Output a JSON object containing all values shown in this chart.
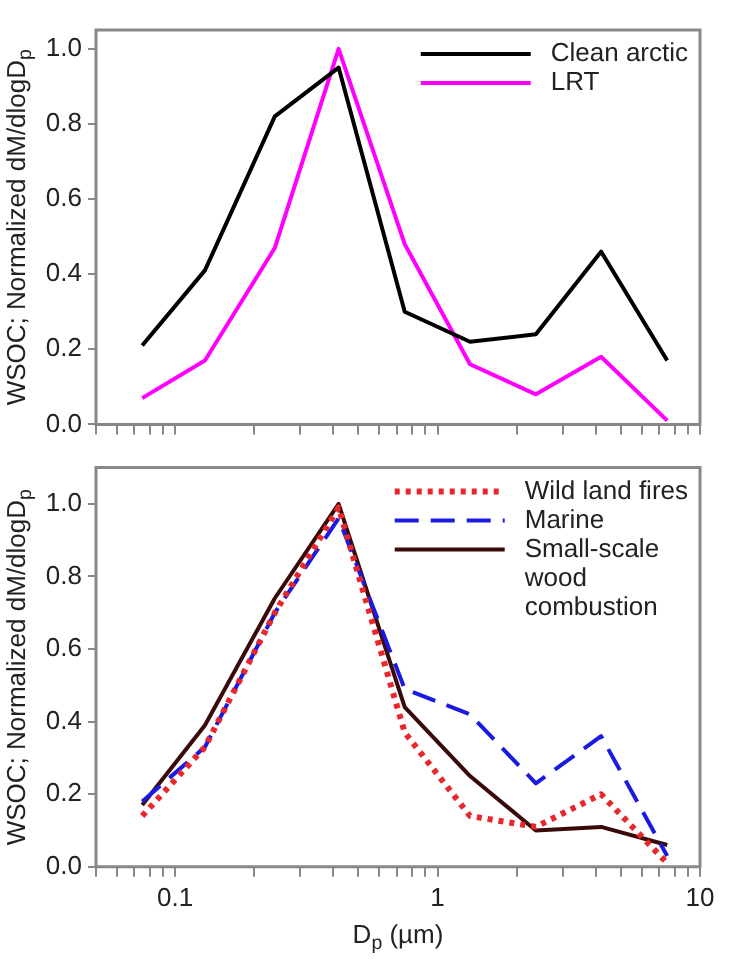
{
  "chart_data": [
    {
      "type": "line",
      "ylabel": "WSOC; Normalized dM/dlogD$_{p}$",
      "x": [
        0.075,
        0.13,
        0.24,
        0.42,
        0.75,
        1.33,
        2.37,
        4.2,
        7.5
      ],
      "series": [
        {
          "name": "Clean arctic",
          "color": "#000000",
          "line_style": "solid",
          "values": [
            0.21,
            0.41,
            0.82,
            0.95,
            0.3,
            0.22,
            0.24,
            0.46,
            0.17
          ]
        },
        {
          "name": "LRT",
          "color": "#ff00ff",
          "line_style": "solid",
          "values": [
            0.07,
            0.17,
            0.47,
            1.0,
            0.48,
            0.16,
            0.08,
            0.18,
            0.01
          ]
        }
      ],
      "log": "x",
      "xlim": [
        0.05,
        10
      ],
      "ylim": [
        0,
        1.05
      ],
      "xticks": [
        {
          "value": 0.05,
          "label": null
        },
        {
          "value": 0.06,
          "label": null
        },
        {
          "value": 0.07,
          "label": null
        },
        {
          "value": 0.08,
          "label": null
        },
        {
          "value": 0.09,
          "label": null
        },
        {
          "value": 0.1,
          "label": null
        },
        {
          "value": 0.2,
          "label": null
        },
        {
          "value": 0.3,
          "label": null
        },
        {
          "value": 0.4,
          "label": null
        },
        {
          "value": 0.5,
          "label": null
        },
        {
          "value": 0.6,
          "label": null
        },
        {
          "value": 0.7,
          "label": null
        },
        {
          "value": 0.8,
          "label": null
        },
        {
          "value": 0.9,
          "label": null
        },
        {
          "value": 1,
          "label": null
        },
        {
          "value": 2,
          "label": null
        },
        {
          "value": 3,
          "label": null
        },
        {
          "value": 4,
          "label": null
        },
        {
          "value": 5,
          "label": null
        },
        {
          "value": 6,
          "label": null
        },
        {
          "value": 7,
          "label": null
        },
        {
          "value": 8,
          "label": null
        },
        {
          "value": 9,
          "label": null
        },
        {
          "value": 10,
          "label": null
        }
      ],
      "yticks": [
        {
          "value": 0,
          "label": "0.0"
        },
        {
          "value": 0.2,
          "label": "0.2"
        },
        {
          "value": 0.4,
          "label": "0.4"
        },
        {
          "value": 0.6,
          "label": "0.6"
        },
        {
          "value": 0.8,
          "label": "0.8"
        },
        {
          "value": 1,
          "label": "1.0"
        }
      ],
      "tick_labels": "y",
      "grid": false,
      "legend": "top right",
      "marker": "none"
    },
    {
      "type": "line",
      "xlabel": "D$_{p}$ (µm)",
      "ylabel": "WSOC; Normalized dM/dlogD$_{p}$",
      "x": [
        0.075,
        0.13,
        0.24,
        0.42,
        0.75,
        1.33,
        2.37,
        4.2,
        7.5
      ],
      "series": [
        {
          "name": "Wild land fires",
          "color": "#e8262b",
          "line_style": "dotted",
          "values": [
            0.14,
            0.33,
            0.7,
            0.99,
            0.37,
            0.14,
            0.11,
            0.2,
            0.01
          ]
        },
        {
          "name": "Marine",
          "color": "#1a1ae0",
          "line_style": "dashed",
          "values": [
            0.18,
            0.33,
            0.7,
            0.96,
            0.49,
            0.42,
            0.23,
            0.36,
            0.03
          ]
        },
        {
          "name": "Small-scale wood combustion",
          "color": "#3a0a0a",
          "line_style": "solid",
          "values": [
            0.17,
            0.39,
            0.74,
            1.0,
            0.44,
            0.25,
            0.1,
            0.11,
            0.06
          ]
        }
      ],
      "log": "x",
      "xlim": [
        0.05,
        10
      ],
      "ylim": [
        0,
        1.1
      ],
      "xticks": [
        {
          "value": 0.05,
          "label": null
        },
        {
          "value": 0.06,
          "label": null
        },
        {
          "value": 0.07,
          "label": null
        },
        {
          "value": 0.08,
          "label": null
        },
        {
          "value": 0.09,
          "label": null
        },
        0.1,
        {
          "value": 0.2,
          "label": null
        },
        {
          "value": 0.3,
          "label": null
        },
        {
          "value": 0.4,
          "label": null
        },
        {
          "value": 0.5,
          "label": null
        },
        {
          "value": 0.6,
          "label": null
        },
        {
          "value": 0.7,
          "label": null
        },
        {
          "value": 0.8,
          "label": null
        },
        {
          "value": 0.9,
          "label": null
        },
        1,
        {
          "value": 2,
          "label": null
        },
        {
          "value": 3,
          "label": null
        },
        {
          "value": 4,
          "label": null
        },
        {
          "value": 5,
          "label": null
        },
        {
          "value": 6,
          "label": null
        },
        {
          "value": 7,
          "label": null
        },
        {
          "value": 8,
          "label": null
        },
        {
          "value": 9,
          "label": null
        },
        10
      ],
      "yticks": [
        {
          "value": 0,
          "label": "0.0"
        },
        {
          "value": 0.2,
          "label": "0.2"
        },
        {
          "value": 0.4,
          "label": "0.4"
        },
        {
          "value": 0.6,
          "label": "0.6"
        },
        {
          "value": 0.8,
          "label": "0.8"
        },
        {
          "value": 1,
          "label": "1.0"
        }
      ],
      "grid": false,
      "legend": "top right",
      "marker": "none"
    }
  ]
}
